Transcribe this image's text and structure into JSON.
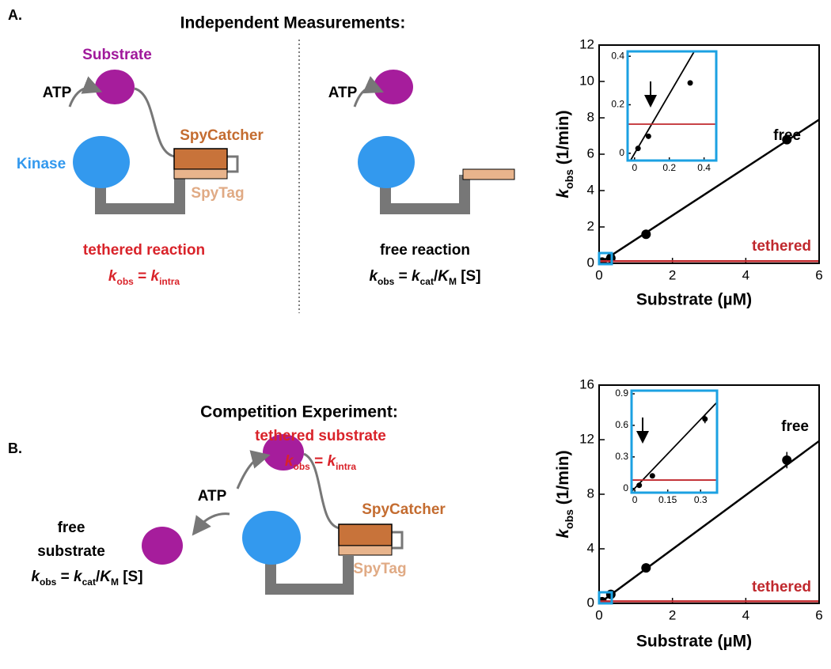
{
  "panels": [
    {
      "label": "A.",
      "title": "Independent Measurements:",
      "diagram": {
        "substrate": "Substrate",
        "atp": "ATP",
        "kinase": "Kinase",
        "spycatcher": "SpyCatcher",
        "spytag": "SpyTag",
        "tethered": {
          "label": "tethered reaction",
          "equation": [
            "k",
            "obs",
            " = ",
            "k",
            "intra"
          ]
        },
        "free": {
          "atp": "ATP",
          "label": "free reaction",
          "equation": [
            "k",
            "obs",
            " = ",
            "k",
            "cat",
            "/",
            "K",
            "M",
            " [S]"
          ]
        }
      }
    },
    {
      "label": "B.",
      "title": "Competition Experiment:",
      "diagram": {
        "tethered": {
          "label": "tethered substrate",
          "equation": [
            "k",
            "obs",
            " = ",
            "k",
            "intra"
          ]
        },
        "atp": "ATP",
        "free": {
          "label": [
            "free",
            "substrate"
          ],
          "equation": [
            "k",
            "obs",
            " = ",
            "k",
            "cat",
            "/",
            "K",
            "M",
            " [S]"
          ]
        },
        "spycatcher": "SpyCatcher",
        "spytag": "SpyTag"
      }
    }
  ],
  "chart_data": [
    {
      "type": "scatter",
      "x_label": "Substrate (µM)",
      "y_label": [
        "k",
        "obs",
        " (1/min)"
      ],
      "xlim": [
        0,
        6
      ],
      "xticks": [
        0,
        2,
        4,
        6
      ],
      "ylim": [
        0,
        12
      ],
      "yticks": [
        0,
        2,
        4,
        6,
        8,
        10,
        12
      ],
      "series": [
        {
          "name": "free",
          "color": "#000000",
          "x": [
            0.02,
            0.08,
            0.32,
            1.28,
            5.12
          ],
          "values": [
            0.02,
            0.07,
            0.29,
            1.6,
            6.8
          ]
        },
        {
          "type": "line",
          "color": "#000000",
          "x": [
            0,
            6
          ],
          "values": [
            0,
            7.9
          ]
        },
        {
          "name": "tethered",
          "type": "line",
          "color": "#c0282d",
          "x": [
            0,
            6
          ],
          "values": [
            0.12,
            0.12
          ]
        }
      ]
    },
    {
      "type": "scatter",
      "xlim": [
        -0.04,
        0.47
      ],
      "xticks": [
        0,
        0.2,
        0.4
      ],
      "ylim": [
        -0.03,
        0.42
      ],
      "yticks": [
        0,
        0.2,
        0.4
      ],
      "series": [
        {
          "color": "#000000",
          "x": [
            0.02,
            0.08,
            0.32
          ],
          "values": [
            0.02,
            0.07,
            0.29
          ]
        },
        {
          "type": "line",
          "color": "#000000",
          "x": [
            -0.04,
            0.36
          ],
          "values": [
            -0.05,
            0.44
          ]
        },
        {
          "type": "line",
          "color": "#c0282d",
          "x": [
            -0.04,
            0.47
          ],
          "values": [
            0.12,
            0.12
          ]
        }
      ]
    },
    {
      "type": "scatter",
      "x_label": "Substrate (µM)",
      "y_label": [
        "k",
        "obs",
        " (1/min)"
      ],
      "xlim": [
        0,
        6
      ],
      "xticks": [
        0,
        2,
        4,
        6
      ],
      "ylim": [
        0,
        16
      ],
      "yticks": [
        0,
        4,
        8,
        12,
        16
      ],
      "series": [
        {
          "name": "free",
          "color": "#000000",
          "x": [
            0.02,
            0.08,
            0.32,
            1.28,
            5.12
          ],
          "values": [
            0.03,
            0.12,
            0.66,
            2.6,
            10.5
          ],
          "error": [
            null,
            null,
            null,
            null,
            0.6
          ]
        },
        {
          "type": "line",
          "color": "#000000",
          "x": [
            0,
            6
          ],
          "values": [
            0,
            11.9
          ]
        },
        {
          "name": "tethered",
          "type": "line",
          "color": "#c0282d",
          "x": [
            0,
            6
          ],
          "values": [
            0.15,
            0.15
          ]
        }
      ]
    },
    {
      "type": "scatter",
      "xlim": [
        -0.015,
        0.375
      ],
      "xticks": [
        0,
        0.15,
        0.3
      ],
      "ylim": [
        -0.04,
        0.93
      ],
      "yticks": [
        0,
        0.3,
        0.6,
        0.9
      ],
      "series": [
        {
          "color": "#000000",
          "x": [
            0.02,
            0.08,
            0.32
          ],
          "values": [
            0.03,
            0.12,
            0.66
          ],
          "error": [
            null,
            null,
            0.04
          ]
        },
        {
          "type": "line",
          "color": "#000000",
          "x": [
            -0.015,
            0.375
          ],
          "values": [
            -0.03,
            0.82
          ]
        },
        {
          "type": "line",
          "color": "#c0282d",
          "x": [
            -0.015,
            0.375
          ],
          "values": [
            0.08,
            0.08
          ]
        }
      ]
    }
  ]
}
